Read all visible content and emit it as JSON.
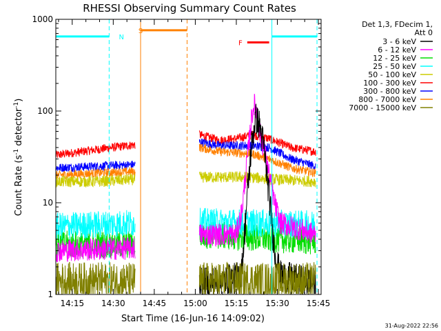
{
  "chart_data": {
    "type": "line",
    "title": "RHESSI Observing Summary Count Rates",
    "xlabel": "Start Time (16-Jun-16 14:09:02)",
    "ylabel_main": "Count Rate (s",
    "ylabel_sup1": "-1",
    "ylabel_mid": " detector",
    "ylabel_sup2": "-1",
    "ylabel_end": ")",
    "y_scale": "log",
    "ylim": [
      1,
      1000
    ],
    "xlim_minutes": [
      0,
      97
    ],
    "x_ticks": [
      {
        "minute": 6,
        "label": "14:15"
      },
      {
        "minute": 21,
        "label": "14:30"
      },
      {
        "minute": 36,
        "label": "14:45"
      },
      {
        "minute": 51,
        "label": "15:00"
      },
      {
        "minute": 66,
        "label": "15:15"
      },
      {
        "minute": 81,
        "label": "15:30"
      },
      {
        "minute": 96,
        "label": "15:45"
      }
    ],
    "y_ticks": [
      {
        "value": 1,
        "label": "1"
      },
      {
        "value": 10,
        "label": "10"
      },
      {
        "value": 100,
        "label": "100"
      },
      {
        "value": 1000,
        "label": "1000"
      }
    ],
    "legend": {
      "placement": "right",
      "header_line1": "Det 1,3, FDecim 1,",
      "header_line2": "Att 0",
      "entries": [
        {
          "label": "3 - 6 keV",
          "color": "#000000"
        },
        {
          "label": "6 - 12 keV",
          "color": "#ff00ff"
        },
        {
          "label": "12 - 25 keV",
          "color": "#00dd00"
        },
        {
          "label": "25 - 50 keV",
          "color": "#00ffff"
        },
        {
          "label": "50 - 100 keV",
          "color": "#cccc00"
        },
        {
          "label": "100 - 300 keV",
          "color": "#ff0000"
        },
        {
          "label": "300 - 800 keV",
          "color": "#0000ff"
        },
        {
          "label": "800 - 7000 keV",
          "color": "#ff8000"
        },
        {
          "label": "7000 - 15000 keV",
          "color": "#808000"
        }
      ]
    },
    "segments": [
      {
        "start": 0,
        "end": 29
      },
      {
        "start": 52.5,
        "end": 95
      }
    ],
    "series": [
      {
        "name": "100 - 300 keV",
        "color": "#ff0000",
        "noise": 0.07,
        "points": [
          [
            0,
            33
          ],
          [
            15,
            38
          ],
          [
            29,
            43
          ],
          [
            52.5,
            55
          ],
          [
            60,
            48
          ],
          [
            66,
            50
          ],
          [
            72,
            55
          ],
          [
            78,
            50
          ],
          [
            86,
            40
          ],
          [
            95,
            36
          ]
        ]
      },
      {
        "name": "300 - 800 keV",
        "color": "#0000ff",
        "noise": 0.07,
        "points": [
          [
            0,
            24
          ],
          [
            15,
            25
          ],
          [
            29,
            26
          ],
          [
            52.5,
            46
          ],
          [
            60,
            42
          ],
          [
            66,
            42
          ],
          [
            72,
            42
          ],
          [
            78,
            40
          ],
          [
            86,
            30
          ],
          [
            95,
            25
          ]
        ]
      },
      {
        "name": "800 - 7000 keV",
        "color": "#ff8000",
        "noise": 0.07,
        "points": [
          [
            0,
            20
          ],
          [
            15,
            21
          ],
          [
            29,
            22
          ],
          [
            52.5,
            40
          ],
          [
            60,
            36
          ],
          [
            66,
            35
          ],
          [
            72,
            34
          ],
          [
            78,
            30
          ],
          [
            86,
            24
          ],
          [
            95,
            21
          ]
        ]
      },
      {
        "name": "50 - 100 keV",
        "color": "#cccc00",
        "noise": 0.09,
        "points": [
          [
            0,
            17
          ],
          [
            15,
            17
          ],
          [
            29,
            18
          ],
          [
            52.5,
            19
          ],
          [
            70,
            19
          ],
          [
            80,
            18
          ],
          [
            95,
            17
          ]
        ]
      },
      {
        "name": "12 - 25 keV",
        "color": "#00dd00",
        "noise": 0.22,
        "points": [
          [
            0,
            3.5
          ],
          [
            29,
            3.5
          ],
          [
            52.5,
            4.5
          ],
          [
            95,
            3.8
          ]
        ]
      },
      {
        "name": "25 - 50 keV",
        "color": "#00ffff",
        "noise": 0.22,
        "points": [
          [
            0,
            5.5
          ],
          [
            29,
            6
          ],
          [
            52.5,
            6.2
          ],
          [
            95,
            5.8
          ]
        ]
      },
      {
        "name": "6 - 12 keV",
        "color": "#ff00ff",
        "noise": 0.18,
        "points": [
          [
            0,
            3
          ],
          [
            29,
            3.2
          ],
          [
            52.5,
            4.5
          ],
          [
            66,
            4.5
          ],
          [
            68,
            8
          ],
          [
            70,
            30
          ],
          [
            71.5,
            80
          ],
          [
            72.5,
            120
          ],
          [
            73.5,
            95
          ],
          [
            74.5,
            60
          ],
          [
            76,
            40
          ],
          [
            78,
            20
          ],
          [
            80,
            10
          ],
          [
            82,
            6
          ],
          [
            95,
            4.5
          ]
        ]
      },
      {
        "name": "3 - 6 keV",
        "color": "#000000",
        "noise": 0.25,
        "points": [
          [
            52.5,
            1.3
          ],
          [
            66,
            1.5
          ],
          [
            68,
            1.8
          ],
          [
            70,
            12
          ],
          [
            71.5,
            40
          ],
          [
            73,
            85
          ],
          [
            74.5,
            70
          ],
          [
            76,
            42
          ],
          [
            78,
            12
          ],
          [
            80,
            3
          ],
          [
            82,
            1.6
          ],
          [
            95,
            1.3
          ]
        ]
      },
      {
        "name": "7000 - 15000 keV",
        "color": "#808000",
        "noise": 0.3,
        "points": [
          [
            0,
            1.4
          ],
          [
            29,
            1.4
          ],
          [
            52.5,
            1.4
          ],
          [
            95,
            1.4
          ]
        ]
      }
    ],
    "flags": [
      {
        "name": "N",
        "color": "#00ffff",
        "label_minute": 24,
        "y_value": 650,
        "bars": [
          [
            0,
            19.5
          ],
          [
            79,
            95.5
          ]
        ],
        "dashed_at": [
          19.5,
          95.5
        ],
        "solid_at": [
          79
        ]
      },
      {
        "name": "S",
        "color": "#ff8000",
        "label_minute": 31,
        "y_value": 760,
        "bars": [
          [
            31,
            48
          ]
        ],
        "dashed_at": [
          48
        ],
        "solid_at": [
          31
        ]
      },
      {
        "name": "F",
        "color": "#ff0000",
        "label_minute": 67.5,
        "y_value": 560,
        "bars": [
          [
            70,
            78
          ]
        ],
        "dashed_at": [],
        "solid_at": []
      }
    ]
  },
  "footer": {
    "timestamp": "31-Aug-2022 22:56"
  }
}
